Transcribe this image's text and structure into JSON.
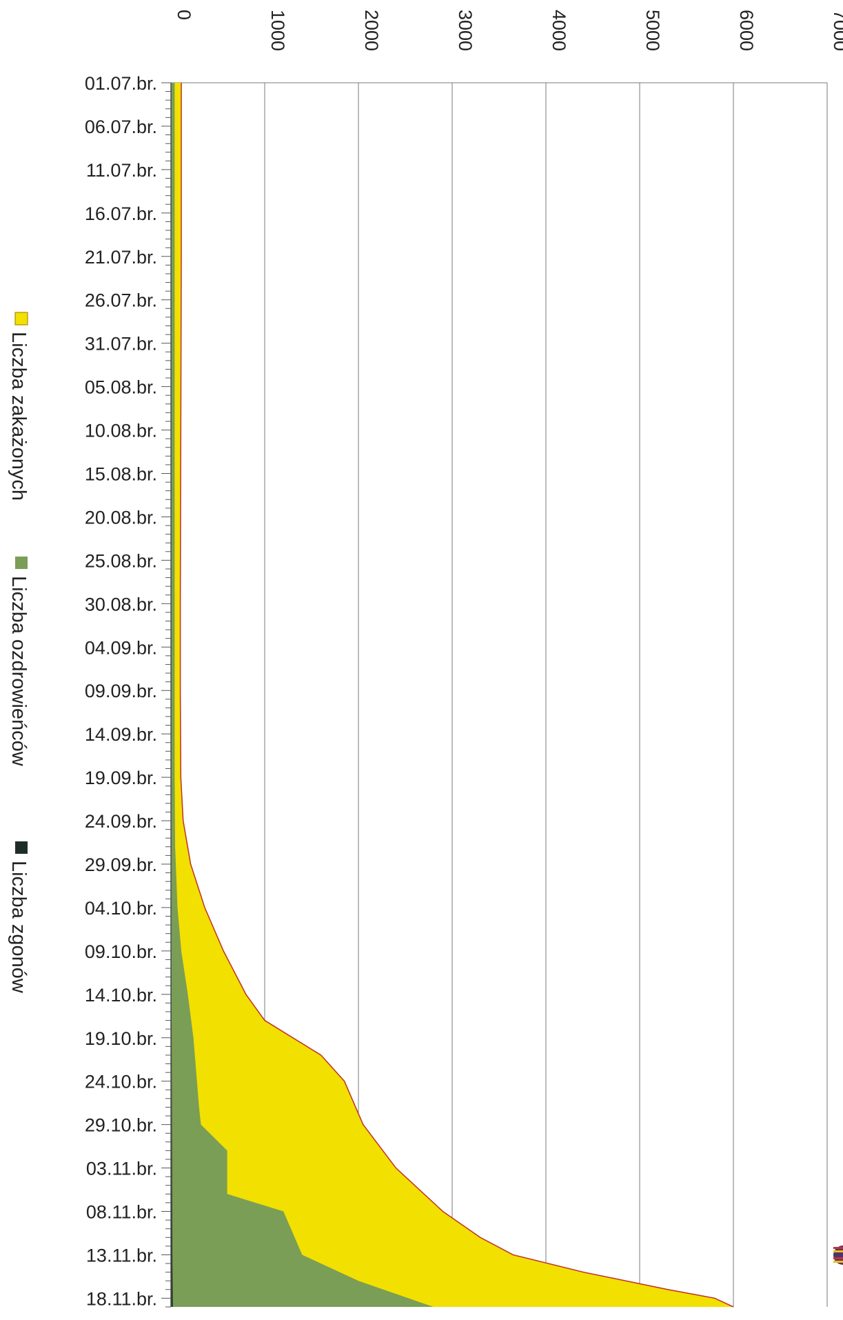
{
  "chart_data": {
    "type": "area",
    "orientation": "rotated-90",
    "stacked": false,
    "ylim": [
      0,
      7000
    ],
    "yticks": [
      "0",
      "1000",
      "2000",
      "3000",
      "4000",
      "5000",
      "6000",
      "7000"
    ],
    "x_labels": [
      "01.07.br.",
      "06.07.br.",
      "11.07.br.",
      "16.07.br.",
      "21.07.br.",
      "26.07.br.",
      "31.07.br.",
      "05.08.br.",
      "10.08.br.",
      "15.08.br.",
      "20.08.br.",
      "25.08.br.",
      "30.08.br.",
      "04.09.br.",
      "09.09.br.",
      "14.09.br.",
      "19.09.br.",
      "24.09.br.",
      "29.09.br.",
      "04.10.br.",
      "09.10.br.",
      "14.10.br.",
      "19.10.br.",
      "24.10.br.",
      "29.10.br.",
      "03.11.br.",
      "08.11.br.",
      "13.11.br.",
      "18.11.br."
    ],
    "x_label_step_days": 5,
    "total_days": 141,
    "grid": true,
    "legend_position": "left",
    "series": [
      {
        "name": "Liczba zakażonych",
        "color": "#f2e000",
        "outline": "#c0392b",
        "points": [
          [
            0,
            110
          ],
          [
            20,
            110
          ],
          [
            40,
            105
          ],
          [
            60,
            100
          ],
          [
            70,
            100
          ],
          [
            80,
            105
          ],
          [
            85,
            130
          ],
          [
            90,
            210
          ],
          [
            95,
            360
          ],
          [
            100,
            560
          ],
          [
            105,
            800
          ],
          [
            108,
            1000
          ],
          [
            112,
            1600
          ],
          [
            115,
            1850
          ],
          [
            120,
            2050
          ],
          [
            125,
            2400
          ],
          [
            130,
            2900
          ],
          [
            133,
            3300
          ],
          [
            135,
            3650
          ],
          [
            137,
            4400
          ],
          [
            139,
            5300
          ],
          [
            140,
            5800
          ],
          [
            141,
            6000
          ]
        ]
      },
      {
        "name": "Liczba ozdrowieńców",
        "color": "#7a9e55",
        "points": [
          [
            0,
            40
          ],
          [
            30,
            40
          ],
          [
            60,
            40
          ],
          [
            80,
            40
          ],
          [
            88,
            45
          ],
          [
            95,
            70
          ],
          [
            100,
            110
          ],
          [
            105,
            180
          ],
          [
            110,
            240
          ],
          [
            118,
            300
          ],
          [
            120,
            320
          ],
          [
            123,
            600
          ],
          [
            128,
            600
          ],
          [
            130,
            1200
          ],
          [
            135,
            1400
          ],
          [
            138,
            2000
          ],
          [
            141,
            2800
          ]
        ]
      },
      {
        "name": "Liczba zgonów",
        "color": "#1e2e26",
        "points": [
          [
            0,
            5
          ],
          [
            100,
            5
          ],
          [
            120,
            10
          ],
          [
            135,
            15
          ],
          [
            141,
            20
          ]
        ]
      }
    ]
  }
}
